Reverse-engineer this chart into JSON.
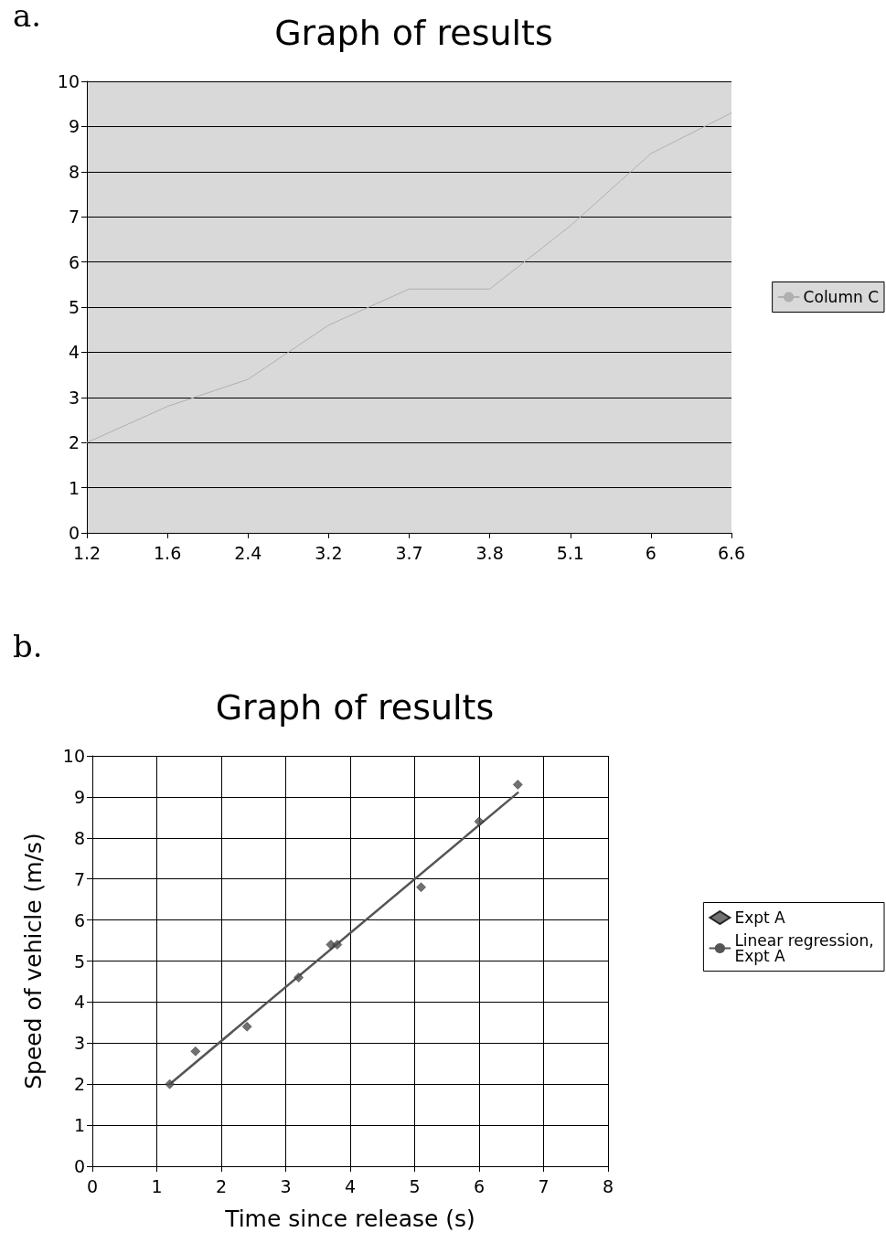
{
  "chart_data": [
    {
      "type": "line",
      "title": "Graph of results",
      "annotations": [
        "a."
      ],
      "categories": [
        "1.2",
        "1.6",
        "2.4",
        "3.2",
        "3.7",
        "3.8",
        "5.1",
        "6",
        "6.6"
      ],
      "series": [
        {
          "name": "Column C",
          "color": "#b0b0b0",
          "values": [
            2,
            2.8,
            3.4,
            4.6,
            5.4,
            5.4,
            6.8,
            8.4,
            9.3
          ]
        }
      ],
      "ylim": [
        0,
        10
      ],
      "yticks": [
        0,
        1,
        2,
        3,
        4,
        5,
        6,
        7,
        8,
        9,
        10
      ],
      "grid": "y",
      "legend": "right",
      "marker": "none"
    },
    {
      "type": "scatter",
      "title": "Graph of results",
      "annotations": [
        "b."
      ],
      "xlabel": "Time since release (s)",
      "ylabel": "Speed of vehicle (m/s)",
      "x": [
        1.2,
        1.6,
        2.4,
        3.2,
        3.7,
        3.8,
        5.1,
        6,
        6.6
      ],
      "series": [
        {
          "name": "Expt A",
          "color": "#4d4d4d",
          "values": [
            2,
            2.8,
            3.4,
            4.6,
            5.4,
            5.4,
            6.8,
            8.4,
            9.3
          ]
        },
        {
          "name": "Linear regression, Expt A",
          "type": "line",
          "color": "#555555",
          "x": [
            1.2,
            6.6
          ],
          "values": [
            2.0,
            9.1
          ],
          "marker": "none"
        }
      ],
      "xlim": [
        0,
        8
      ],
      "xticks": [
        0,
        1,
        2,
        3,
        4,
        5,
        6,
        7,
        8
      ],
      "ylim": [
        0,
        10
      ],
      "yticks": [
        0,
        1,
        2,
        3,
        4,
        5,
        6,
        7,
        8,
        9,
        10
      ],
      "grid": true,
      "legend": "right",
      "marker": "diamond"
    }
  ]
}
